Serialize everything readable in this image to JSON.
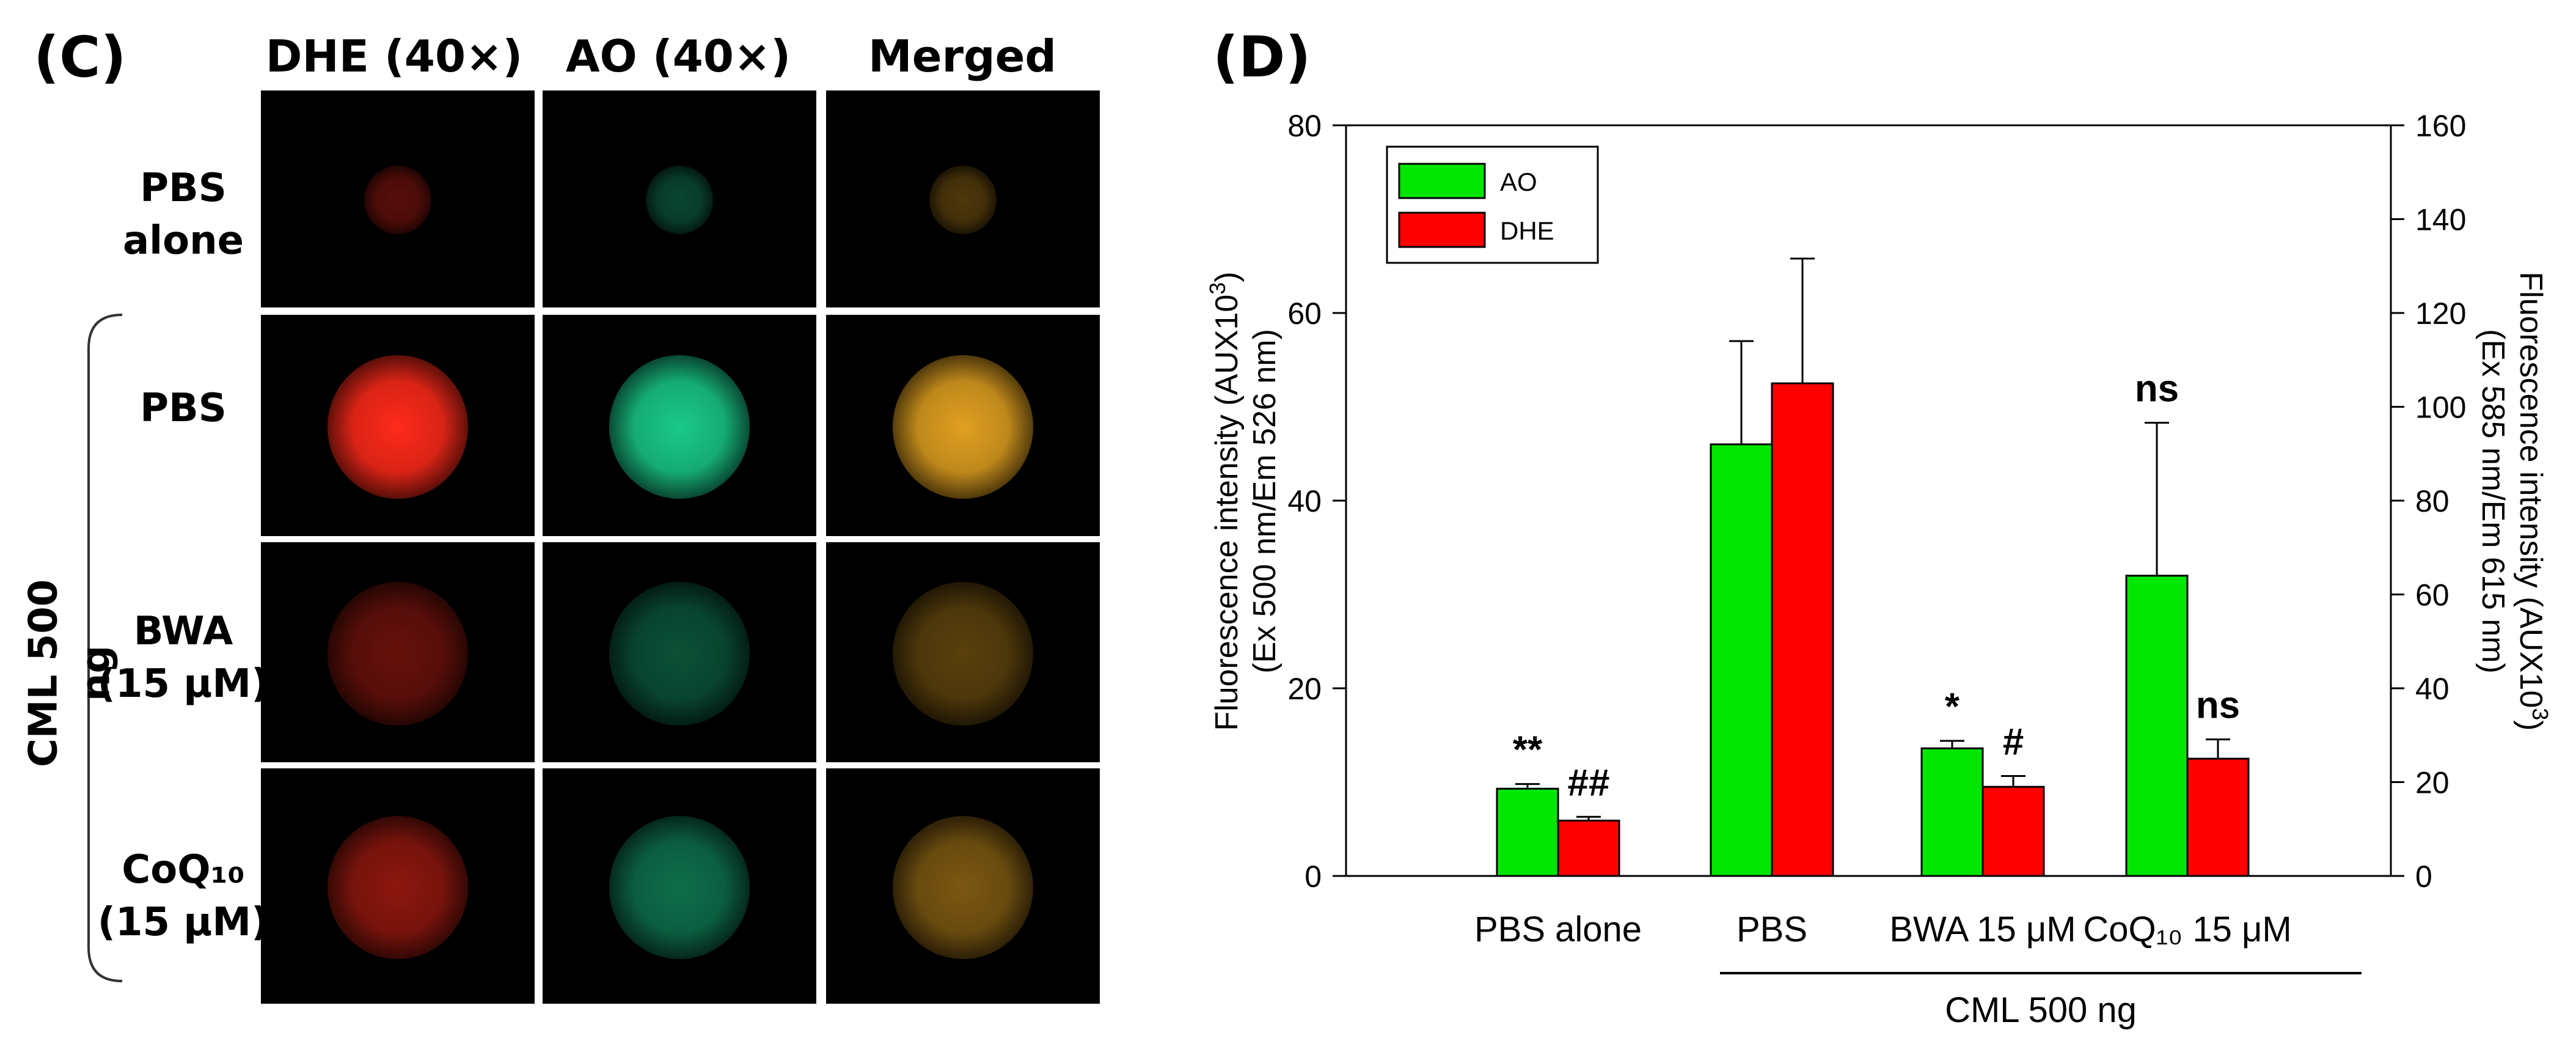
{
  "panel_c": {
    "label": "(C)",
    "columns": [
      "DHE (40×)",
      "AO (40×)",
      "Merged"
    ],
    "rows": [
      {
        "line1": "PBS alone",
        "line2": "",
        "intensity": 0.35
      },
      {
        "line1": "PBS",
        "line2": "",
        "intensity": 1.0
      },
      {
        "line1": "BWA",
        "line2": "(15 μM)",
        "intensity": 0.4
      },
      {
        "line1": "CoQ₁₀",
        "line2": "(15 μM)",
        "intensity": 0.55
      }
    ],
    "group_label": "CML 500 ng",
    "colors": {
      "dhe": "#ff2a1a",
      "ao": "#19c98a",
      "merged": "#e0a020"
    }
  },
  "panel_d": {
    "label": "(D)",
    "group_label": "CML 500 ng"
  },
  "chart_data": {
    "type": "bar",
    "categories": [
      "PBS alone",
      "PBS",
      "BWA 15 μM",
      "CoQ₁₀ 15 μM"
    ],
    "series": [
      {
        "name": "AO",
        "axis": "left",
        "color": "#00e600",
        "values": [
          9.3,
          46,
          13.6,
          32
        ],
        "errors": [
          0.5,
          11,
          0.8,
          16.3
        ],
        "annotations": [
          "**",
          "",
          "*",
          "ns"
        ]
      },
      {
        "name": "DHE",
        "axis": "right",
        "color": "#ff0000",
        "values": [
          11.8,
          105,
          19,
          25
        ],
        "errors": [
          0.8,
          26.6,
          2.3,
          4.1
        ],
        "annotations": [
          "##",
          "",
          "#",
          "ns"
        ]
      }
    ],
    "ylabel_left_line1": "Fluorescence intensity (AUX10",
    "ylabel_left_sup": "3",
    "ylabel_left_close": ")",
    "ylabel_left_line2": "(Ex 500 nm/Em 526 nm)",
    "ylabel_right_line1": "Fluorescence intensity (AUX10",
    "ylabel_right_sup": "3",
    "ylabel_right_close": ")",
    "ylabel_right_line2": "(Ex 585 nm/Em 615 nm)",
    "ylim_left": [
      0,
      80
    ],
    "yticks_left": [
      0,
      20,
      40,
      60,
      80
    ],
    "ylim_right": [
      0,
      160
    ],
    "yticks_right": [
      0,
      20,
      40,
      60,
      80,
      100,
      120,
      140,
      160
    ],
    "legend_position": "top-left",
    "bracket_label": "CML 500 ng"
  }
}
